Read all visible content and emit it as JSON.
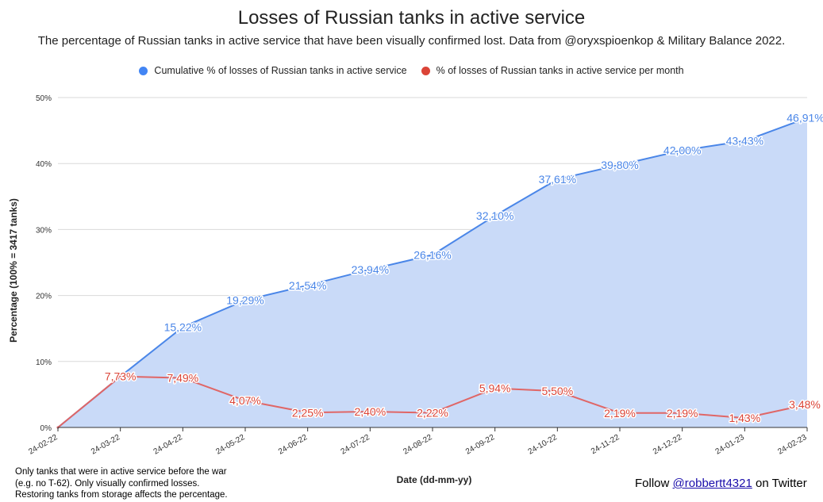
{
  "chart_data": {
    "type": "line",
    "title": "Losses of Russian tanks in active service",
    "subtitle": "The percentage of Russian tanks in active service that have been visually confirmed lost. Data from @oryxspioenkop & Military Balance 2022.",
    "xlabel": "Date (dd-mm-yy)",
    "ylabel": "Percentage (100% = 3417 tanks)",
    "ylim": [
      0,
      50
    ],
    "y_ticks": [
      "0%",
      "10%",
      "20%",
      "30%",
      "40%",
      "50%"
    ],
    "y_tick_values": [
      0,
      10,
      20,
      30,
      40,
      50
    ],
    "grid": true,
    "legend_position": "top",
    "categories": [
      "24-02-22",
      "24-03-22",
      "24-04-22",
      "24-05-22",
      "24-06-22",
      "24-07-22",
      "24-08-22",
      "24-09-22",
      "24-10-22",
      "24-11-22",
      "24-12-22",
      "24-01-23",
      "24-02-23"
    ],
    "series": [
      {
        "name": "Cumulative % of losses of Russian tanks in active service",
        "color": "#4a86e8",
        "fill": "#c9daf8",
        "values": [
          0,
          7.73,
          15.22,
          19.29,
          21.54,
          23.94,
          26.16,
          32.1,
          37.61,
          39.8,
          42.0,
          43.43,
          46.91
        ],
        "labels": [
          "",
          "",
          "15,22%",
          "19,29%",
          "21,54%",
          "23,94%",
          "26,16%",
          "32,10%",
          "37,61%",
          "39,80%",
          "42,00%",
          "43,43%",
          "46,91%"
        ]
      },
      {
        "name": "% of losses of Russian tanks in active service per month",
        "color": "#e06666",
        "values": [
          0,
          7.73,
          7.49,
          4.07,
          2.25,
          2.4,
          2.22,
          5.94,
          5.5,
          2.19,
          2.19,
          1.43,
          3.48
        ],
        "labels": [
          "",
          "7,73%",
          "7,49%",
          "4,07%",
          "2,25%",
          "2,40%",
          "2,22%",
          "5,94%",
          "5,50%",
          "2,19%",
          "2,19%",
          "1,43%",
          "3,48%"
        ]
      }
    ]
  },
  "legend": {
    "series1_color": "#4285f4",
    "series2_color": "#db4437"
  },
  "footnote": {
    "line1": "Only tanks that were in active service before the war",
    "line2": "(e.g. no T-62). Only visually confirmed losses.",
    "line3": "Restoring tanks from storage affects the percentage."
  },
  "follow": {
    "prefix": "Follow",
    "handle": "@robbertt4321",
    "suffix": "on Twitter"
  }
}
